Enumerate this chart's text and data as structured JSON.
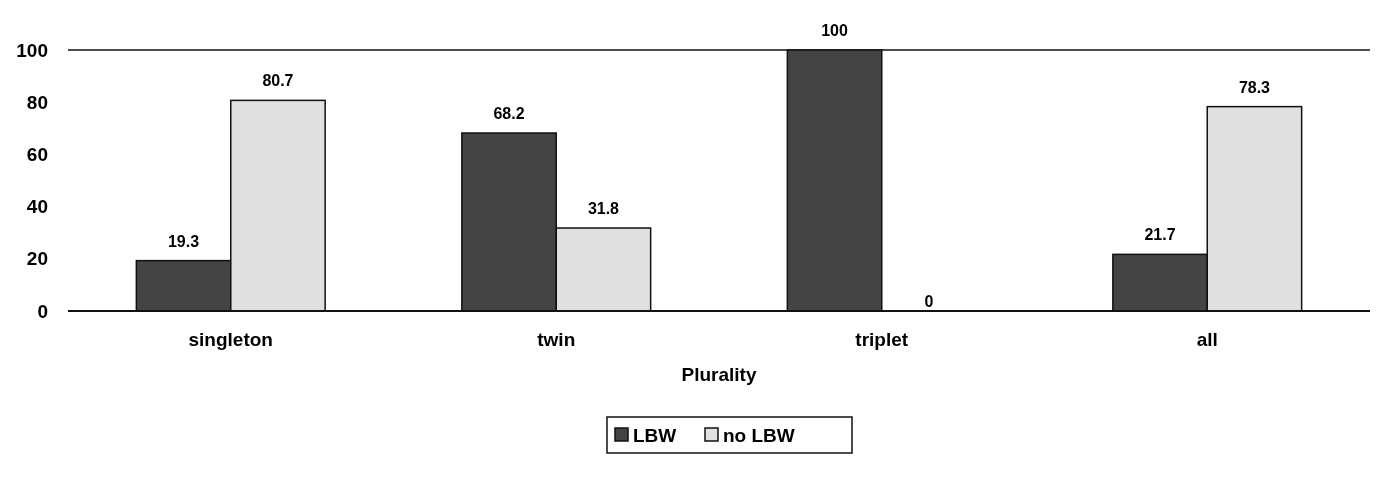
{
  "chart_data": {
    "type": "bar",
    "xlabel": "Plurality",
    "categories": [
      "singleton",
      "twin",
      "triplet",
      "all"
    ],
    "series": [
      {
        "name": "LBW",
        "color": "#444444",
        "values": [
          19.3,
          68.2,
          100,
          21.7
        ]
      },
      {
        "name": "no LBW",
        "color": "#e0e0e0",
        "values": [
          80.7,
          31.8,
          0,
          78.3
        ]
      }
    ],
    "ylim": [
      0,
      100
    ],
    "yticks": [
      0,
      20,
      40,
      60,
      80,
      100
    ],
    "data_labels": true,
    "legend": "bottom",
    "grid": false
  }
}
